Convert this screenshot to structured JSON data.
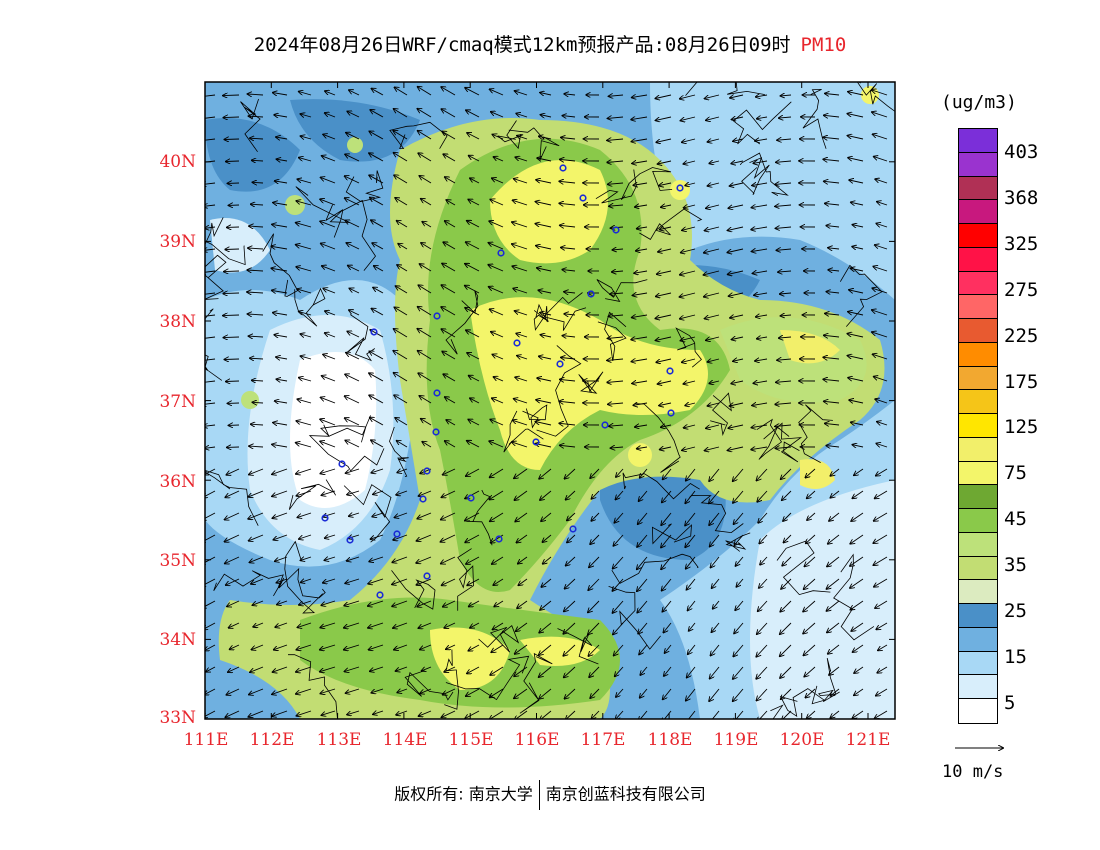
{
  "title": {
    "main": "2024年08月26日WRF/cmaq模式12km预报产品:08月26日09时",
    "variable": "PM10"
  },
  "map": {
    "lat_labels": [
      "40N",
      "39N",
      "38N",
      "37N",
      "36N",
      "35N",
      "34N",
      "33N"
    ],
    "lon_labels": [
      "111E",
      "112E",
      "113E",
      "114E",
      "115E",
      "116E",
      "117E",
      "118E",
      "119E",
      "120E",
      "121E"
    ],
    "lon_range": [
      111,
      121.4
    ],
    "lat_range": [
      33,
      41
    ]
  },
  "colorbar": {
    "unit": "(ug/m3)",
    "colors": [
      "#7b2fd9",
      "#9a33cf",
      "#b03055",
      "#c8187e",
      "#ff0000",
      "#ff1247",
      "#ff3060",
      "#ff6666",
      "#e85a30",
      "#ff8c00",
      "#f2a830",
      "#f5c518",
      "#ffe600",
      "#f2ef6a",
      "#f3f56a",
      "#6ea832",
      "#8ac94a",
      "#bde17a",
      "#c2dd73",
      "#dcebc0",
      "#4a90c8",
      "#6fb0e0",
      "#a8d8f5",
      "#d8eefb",
      "#ffffff"
    ],
    "labels": [
      "403",
      "368",
      "325",
      "275",
      "225",
      "175",
      "125",
      "75",
      "45",
      "35",
      "25",
      "15",
      "5"
    ]
  },
  "vector_legend": {
    "label": "10 m/s"
  },
  "footer": {
    "left": "版权所有: 南京大学",
    "right": "南京创蓝科技有限公司"
  },
  "icons": [
    "wind-arrow-icon",
    "station-marker-icon"
  ]
}
